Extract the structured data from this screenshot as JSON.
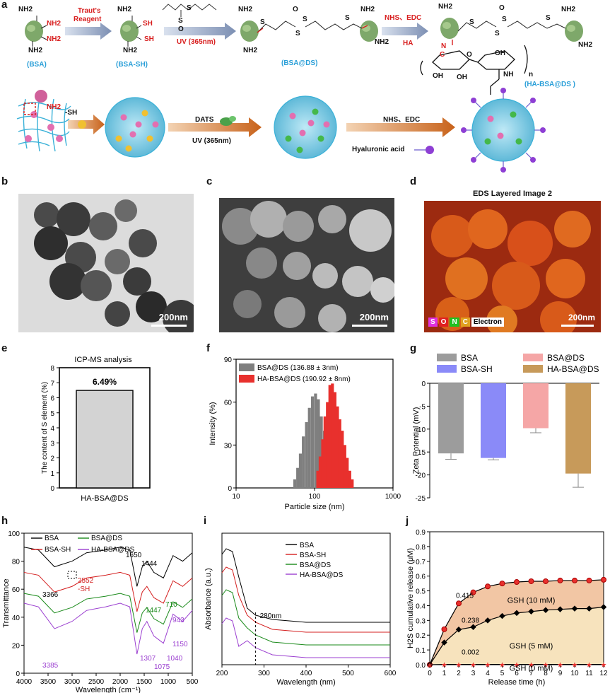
{
  "panel_letters": {
    "a": "a",
    "b": "b",
    "c": "c",
    "d": "d",
    "e": "e",
    "f": "f",
    "g": "g",
    "h": "h",
    "i": "i",
    "j": "j"
  },
  "scheme": {
    "nh2": "NH2",
    "sh": "SH",
    "bsa": "(BSA)",
    "bsa_sh": "(BSA-SH)",
    "bsa_ds": "(BSA@DS)",
    "ha_bsa_ds": "(HA-BSA@DS )",
    "trauts": "Traut's",
    "reagent": "Reagent",
    "uv1": "UV (365nm)",
    "nhs_edc1": "NHS、EDC",
    "ha": "HA",
    "s": "S",
    "o": "O",
    "n": "N",
    "oh": "OH",
    "c": "C",
    "nh": "NH",
    "n_sub": "n",
    "nh2_lower": "NH2",
    "sh_step": "-SH",
    "dats": "DATS",
    "uv2": "UV (365nm)",
    "nhs_edc2": "NHS、EDC",
    "hyaluronic": "Hyaluronic acid"
  },
  "micro": {
    "scale_b": "200nm",
    "scale_c": "200nm",
    "scale_d": "200nm",
    "eds_title": "EDS Layered Image 2",
    "eds_legend": [
      "S",
      "O",
      "N",
      "C",
      "Electron"
    ]
  },
  "chart_data": [
    {
      "id": "e",
      "type": "bar",
      "title": "ICP-MS analysis",
      "categories": [
        "HA-BSA@DS"
      ],
      "values": [
        6.49
      ],
      "data_label": "6.49%",
      "ylabel": "The content of S element (%)",
      "ylim": [
        0,
        8
      ],
      "yticks": [
        "0",
        "1",
        "2",
        "3",
        "4",
        "5",
        "6",
        "7",
        "8"
      ]
    },
    {
      "id": "f",
      "type": "bar",
      "xscale": "log",
      "xlim": [
        10,
        1000
      ],
      "ylim": [
        0,
        90
      ],
      "xlabel": "Particle size (nm)",
      "ylabel": "Intensity (%)",
      "xticks": [
        "10",
        "100",
        "1000"
      ],
      "yticks": [
        "0",
        "30",
        "60",
        "90"
      ],
      "series": [
        {
          "name": "BSA@DS (136.88 ± 3nm)",
          "color": "#7f7f7f",
          "x": [
            56,
            61,
            66,
            72,
            79,
            86,
            94,
            103,
            112,
            122,
            134,
            146
          ],
          "values": [
            6,
            14,
            24,
            36,
            46,
            56,
            64,
            66,
            62,
            50,
            40,
            28
          ]
        },
        {
          "name": "HA-BSA@DS (190.92 ± 8nm)",
          "color": "#e8302d",
          "x": [
            110,
            118,
            127,
            136,
            146,
            157,
            169,
            182,
            196,
            210,
            226,
            243,
            261,
            281,
            302
          ],
          "values": [
            12,
            22,
            34,
            50,
            60,
            72,
            73,
            67,
            57,
            48,
            40,
            30,
            21,
            12,
            6
          ]
        }
      ]
    },
    {
      "id": "g",
      "type": "bar",
      "ylabel": "Zeta Potential (mV)",
      "ylim": [
        -25,
        0
      ],
      "yticks": [
        "0",
        "-5",
        "-10",
        "-15",
        "-20",
        "-25"
      ],
      "categories": [
        "BSA",
        "BSA-SH",
        "BSA@DS",
        "HA-BSA@DS"
      ],
      "values": [
        -15.3,
        -16.3,
        -9.8,
        -19.7
      ],
      "errors": [
        1.3,
        0.4,
        1.0,
        3.0
      ],
      "colors": [
        "#9c9c9c",
        "#8a8af8",
        "#f5a6a6",
        "#c79a5a"
      ]
    },
    {
      "id": "h",
      "type": "line",
      "xlabel": "Wavelength (cm⁻¹)",
      "ylabel": "Transmittance",
      "xlim": [
        4000,
        500
      ],
      "ylim": [
        0,
        100
      ],
      "xticks": [
        "4000",
        "3500",
        "3000",
        "2500",
        "2000",
        "1500",
        "1000",
        "500"
      ],
      "yticks": [
        "0",
        "20",
        "40",
        "60",
        "80",
        "100"
      ],
      "series": [
        {
          "name": "BSA",
          "color": "#000000"
        },
        {
          "name": "BSA-SH",
          "color": "#d42020"
        },
        {
          "name": "BSA@DS",
          "color": "#1a8a1a"
        },
        {
          "name": "HA-BSA@DS",
          "color": "#9b3fd0"
        }
      ],
      "annotations": [
        "1650",
        "1444",
        "3366",
        "2552",
        "-SH",
        "1447",
        "710",
        "943",
        "1150",
        "1307",
        "1075",
        "1040",
        "3385"
      ]
    },
    {
      "id": "i",
      "type": "line",
      "xlabel": "Wavelength (nm)",
      "ylabel": "Absorbance (a.u.)",
      "xlim": [
        200,
        600
      ],
      "xticks": [
        "200",
        "300",
        "400",
        "500",
        "600"
      ],
      "series": [
        {
          "name": "BSA",
          "color": "#000000"
        },
        {
          "name": "BSA-SH",
          "color": "#d42020"
        },
        {
          "name": "BSA@DS",
          "color": "#1a8a1a"
        },
        {
          "name": "HA-BSA@DS",
          "color": "#9b3fd0"
        }
      ],
      "annotations": [
        "280nm"
      ]
    },
    {
      "id": "j",
      "type": "line",
      "xlabel": "Release time (h)",
      "ylabel": "H2S cumulative release (μM)",
      "xlim": [
        0,
        12
      ],
      "ylim": [
        0,
        0.9
      ],
      "xticks": [
        "0",
        "1",
        "2",
        "3",
        "4",
        "5",
        "6",
        "7",
        "8",
        "9",
        "10",
        "11",
        "12"
      ],
      "yticks": [
        "0.0",
        "0.1",
        "0.2",
        "0.3",
        "0.4",
        "0.5",
        "0.6",
        "0.7",
        "0.8",
        "0.9"
      ],
      "x": [
        0,
        1,
        2,
        3,
        4,
        5,
        6,
        7,
        8,
        9,
        10,
        11,
        12
      ],
      "series": [
        {
          "name": "GSH (10 mM)",
          "color": "#e8302d",
          "values": [
            0,
            0.24,
            0.415,
            0.49,
            0.53,
            0.55,
            0.56,
            0.565,
            0.565,
            0.57,
            0.57,
            0.57,
            0.575
          ]
        },
        {
          "name": "GSH (5 mM)",
          "color": "#111111",
          "values": [
            0,
            0.15,
            0.238,
            0.255,
            0.3,
            0.33,
            0.35,
            0.36,
            0.37,
            0.375,
            0.38,
            0.38,
            0.39
          ]
        },
        {
          "name": "GSH (0 mM)",
          "color": "#8a2be2",
          "values": [
            0,
            0.002,
            0.002,
            0.002,
            0.002,
            0.002,
            0.002,
            0.002,
            0.002,
            0.002,
            0.002,
            0.002,
            0.002
          ]
        }
      ],
      "data_labels": [
        "0.415",
        "0.238",
        "0.002"
      ],
      "region_labels": [
        "GSH (10 mM)",
        "GSH (5 mM)",
        "GSH (0 mM)"
      ]
    }
  ]
}
